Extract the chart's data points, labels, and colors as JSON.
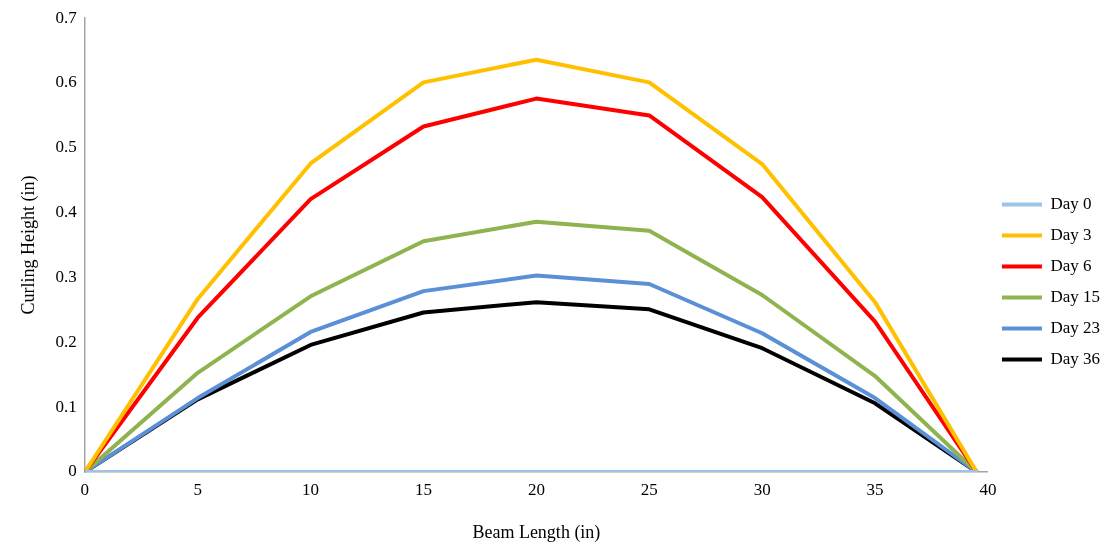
{
  "chart_data": {
    "type": "line",
    "xlabel": "Beam Length (in)",
    "ylabel": "Curling Height (in)",
    "x": [
      0,
      5,
      10,
      15,
      20,
      25,
      30,
      35,
      39.5
    ],
    "series": [
      {
        "name": "Day 0",
        "color": "#9dc3e6",
        "values": [
          0,
          0,
          0,
          0,
          0,
          0,
          0,
          0,
          0
        ]
      },
      {
        "name": "Day 3",
        "color": "#ffc000",
        "values": [
          0,
          0.267,
          0.476,
          0.601,
          0.636,
          0.601,
          0.475,
          0.262,
          0
        ]
      },
      {
        "name": "Day 6",
        "color": "#ff0000",
        "values": [
          0,
          0.238,
          0.421,
          0.533,
          0.576,
          0.55,
          0.424,
          0.232,
          0
        ]
      },
      {
        "name": "Day 15",
        "color": "#8fb34f",
        "values": [
          0,
          0.153,
          0.271,
          0.356,
          0.386,
          0.372,
          0.273,
          0.148,
          0
        ]
      },
      {
        "name": "Day 23",
        "color": "#5b8fd6",
        "values": [
          0,
          0.114,
          0.216,
          0.279,
          0.303,
          0.29,
          0.214,
          0.114,
          0
        ]
      },
      {
        "name": "Day 36",
        "color": "#000000",
        "values": [
          0,
          0.112,
          0.196,
          0.246,
          0.262,
          0.251,
          0.191,
          0.106,
          0
        ]
      }
    ],
    "xlim": [
      0,
      40
    ],
    "xticks": [
      0,
      5,
      10,
      15,
      20,
      25,
      30,
      35,
      40
    ],
    "ylim": [
      0,
      0.7
    ],
    "yticks": [
      0,
      0.1,
      0.2,
      0.3,
      0.4,
      0.5,
      0.6,
      0.7
    ],
    "grid": false,
    "legend": "right",
    "marker": "none",
    "line_style": "solid"
  }
}
